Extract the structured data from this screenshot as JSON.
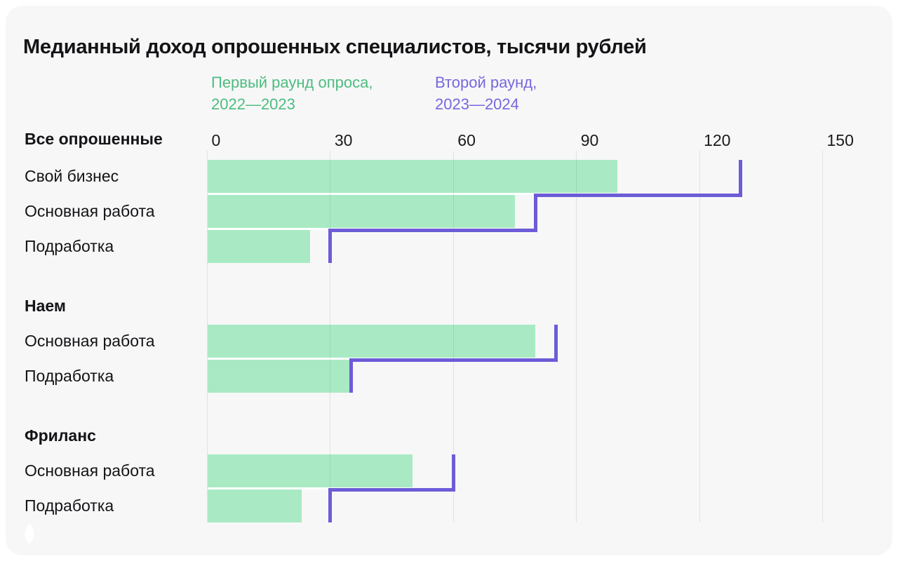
{
  "title": "Медианный доход опрошенных специалистов, тысячи рублей",
  "legend": [
    {
      "line1": "Первый раунд опроса,",
      "line2": "2022—2023",
      "color": "#4dbd7e"
    },
    {
      "line1": "Второй раунд,",
      "line2": "2023—2024",
      "color": "#7668de"
    }
  ],
  "icons": {
    "footer_logo": "drop-icon"
  },
  "colors": {
    "page_bg": "#ffffff",
    "card_bg": "#f7f7f8",
    "grid": "#e7e7ea",
    "text": "#141417",
    "bar_round1": "#a9eac4",
    "line_round2": "#6c5cd7",
    "logo": "#ffffff"
  },
  "chart_data": {
    "type": "bar",
    "orientation": "horizontal",
    "title": "Медианный доход опрошенных специалистов, тысячи рублей",
    "value_unit": "тысячи рублей",
    "xlim": [
      0,
      150
    ],
    "x_ticks": [
      "0",
      "30",
      "60",
      "90",
      "120",
      "150"
    ],
    "grid": true,
    "legend_position": "top",
    "series": [
      {
        "name": "Первый раунд опроса, 2022—2023",
        "style": "filled-bar",
        "color": "#a9eac4"
      },
      {
        "name": "Второй раунд, 2023—2024",
        "style": "step-line",
        "color": "#6c5cd7"
      }
    ],
    "sections": [
      {
        "header": "Все опрошенные",
        "rows": [
          {
            "label": "Свой бизнес",
            "round1": 100,
            "round2": 130
          },
          {
            "label": "Основная работа",
            "round1": 75,
            "round2": 80
          },
          {
            "label": "Подработка",
            "round1": 25,
            "round2": 30
          }
        ]
      },
      {
        "header": "Наем",
        "rows": [
          {
            "label": "Основная работа",
            "round1": 80,
            "round2": 85
          },
          {
            "label": "Подработка",
            "round1": 35,
            "round2": 35
          }
        ]
      },
      {
        "header": "Фриланс",
        "rows": [
          {
            "label": "Основная работа",
            "round1": 50,
            "round2": 60
          },
          {
            "label": "Подработка",
            "round1": 23,
            "round2": 30
          }
        ]
      }
    ]
  }
}
